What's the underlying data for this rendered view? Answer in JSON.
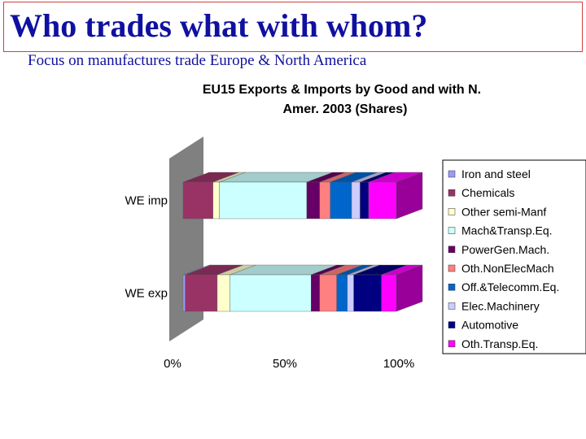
{
  "slide": {
    "title": "Who trades what with whom?",
    "subtitle": "Focus on manufactures trade Europe & North America"
  },
  "chart_data": {
    "type": "bar",
    "orientation": "horizontal",
    "stacked": "percent",
    "three_d": true,
    "title_lines": [
      "EU15 Exports & Imports by Good and with N.",
      "Amer. 2003 (Shares)"
    ],
    "categories": [
      "WE exp",
      "WE imp"
    ],
    "x_ticks": [
      "0%",
      "50%",
      "100%"
    ],
    "xlim": [
      0,
      100
    ],
    "grid": false,
    "legend_position": "right",
    "series": [
      {
        "name": "Iron and steel",
        "color": "#9999ff",
        "values": [
          1,
          0
        ]
      },
      {
        "name": "Chemicals",
        "color": "#993366",
        "values": [
          15,
          14
        ]
      },
      {
        "name": "Other semi-Manf",
        "color": "#ffffcc",
        "values": [
          6,
          3
        ]
      },
      {
        "name": "Mach&Transp.Eq.",
        "color": "#ccffff",
        "values": [
          38,
          41
        ]
      },
      {
        "name": "PowerGen.Mach.",
        "color": "#660066",
        "values": [
          4,
          6
        ]
      },
      {
        "name": "Oth.NonElecMach",
        "color": "#ff8080",
        "values": [
          8,
          5
        ]
      },
      {
        "name": "Off.&Telecomm.Eq.",
        "color": "#0066cc",
        "values": [
          5,
          10
        ]
      },
      {
        "name": "Elec.Machinery",
        "color": "#ccccff",
        "values": [
          3,
          4
        ]
      },
      {
        "name": "Automotive",
        "color": "#000080",
        "values": [
          13,
          4
        ]
      },
      {
        "name": "Oth.Transp.Eq.",
        "color": "#ff00ff",
        "values": [
          7,
          13
        ]
      }
    ]
  }
}
